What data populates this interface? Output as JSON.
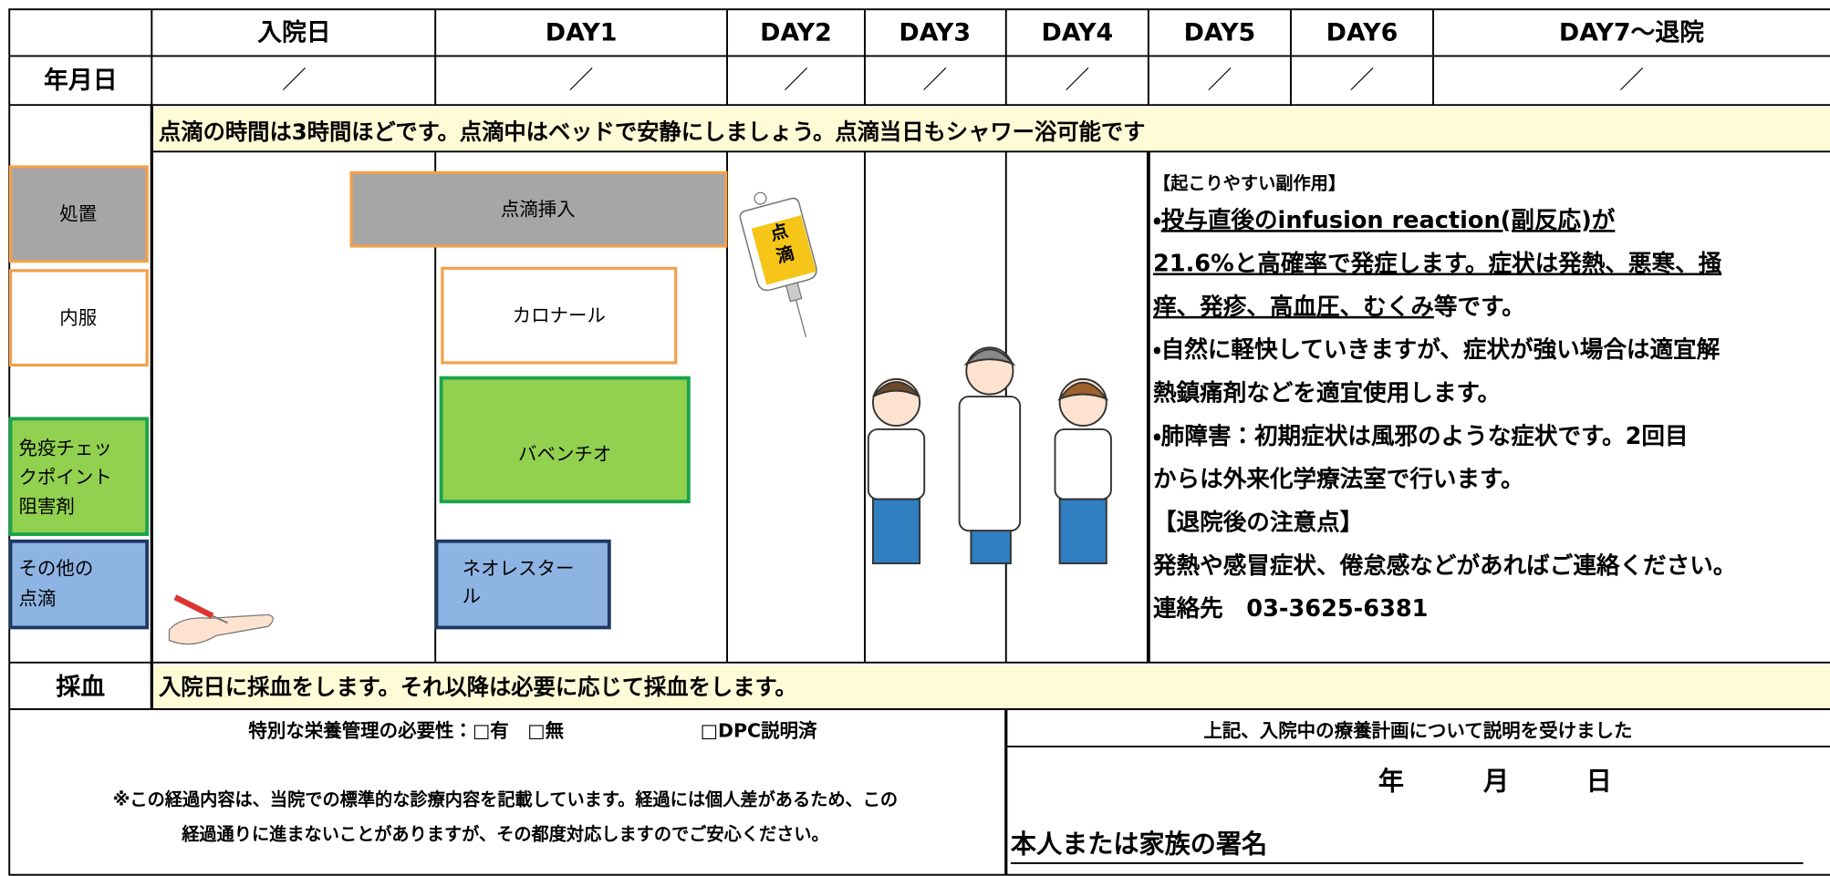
{
  "header": {
    "corner": "",
    "columns": [
      "入院日",
      "DAY1",
      "DAY2",
      "DAY3",
      "DAY4",
      "DAY5",
      "DAY6",
      "DAY7〜退院"
    ]
  },
  "date_row": {
    "label": "年月日",
    "cells": [
      "／",
      "／",
      "／",
      "／",
      "／",
      "／",
      "／",
      "／"
    ]
  },
  "notice": "点滴の時間は3時間ほどです。点滴中はベッドで安静にしましょう。点滴当日もシャワー浴可能です",
  "side_labels": {
    "treatment": "処置",
    "oral": "内服",
    "ici": [
      "免疫チェッ",
      "クポイント",
      "阻害剤"
    ],
    "other_drip": [
      "その他の",
      "点滴"
    ]
  },
  "boxes": {
    "drip_insert": "点滴挿入",
    "calonal": "カロナール",
    "bavencio": "バベンチオ",
    "neorestar": [
      "ネオレスター",
      "ル"
    ]
  },
  "iv_bag": [
    "点",
    "滴"
  ],
  "info": {
    "side_effect_heading": "【起こりやすい副作用】",
    "lines": [
      [
        "・",
        "投与直後のinfusion reaction(副反応)が"
      ],
      [
        "21.6%と高確率で発症します。症状は発熱、悪寒、掻"
      ],
      [
        "痒、発疹、高血圧、むくみ",
        "等です。"
      ],
      [
        "・自然に軽快していきますが、症状が強い場合は適宜解"
      ],
      [
        "熱鎮痛剤などを適宜使用します。"
      ],
      [
        "・肺障害：初期症状は風邪のような症状です。2回目"
      ],
      [
        "からは外来化学療法室で行います。"
      ],
      [
        "【退院後の注意点】"
      ],
      [
        "発熱や感冒症状、倦怠感などがあればご連絡ください。"
      ],
      [
        "連絡先　03-3625-6381"
      ]
    ]
  },
  "blood": {
    "label": "採血",
    "text": "入院日に採血をします。それ以降は必要に応じて採血をします。"
  },
  "footer": {
    "nutrition": "特別な栄養管理の必要性：□有　□無",
    "dpc": "□DPC説明済",
    "note": [
      "※この経過内容は、当院での標準的な診療内容を記載しています。経過には個人差があるため、この",
      "経過通りに進まないことがありますが、その都度対応しますのでご安心ください。"
    ],
    "consent": "上記、入院中の療養計画について説明を受けました",
    "year": "年",
    "month": "月",
    "day": "日",
    "signature": "本人または家族の署名"
  }
}
